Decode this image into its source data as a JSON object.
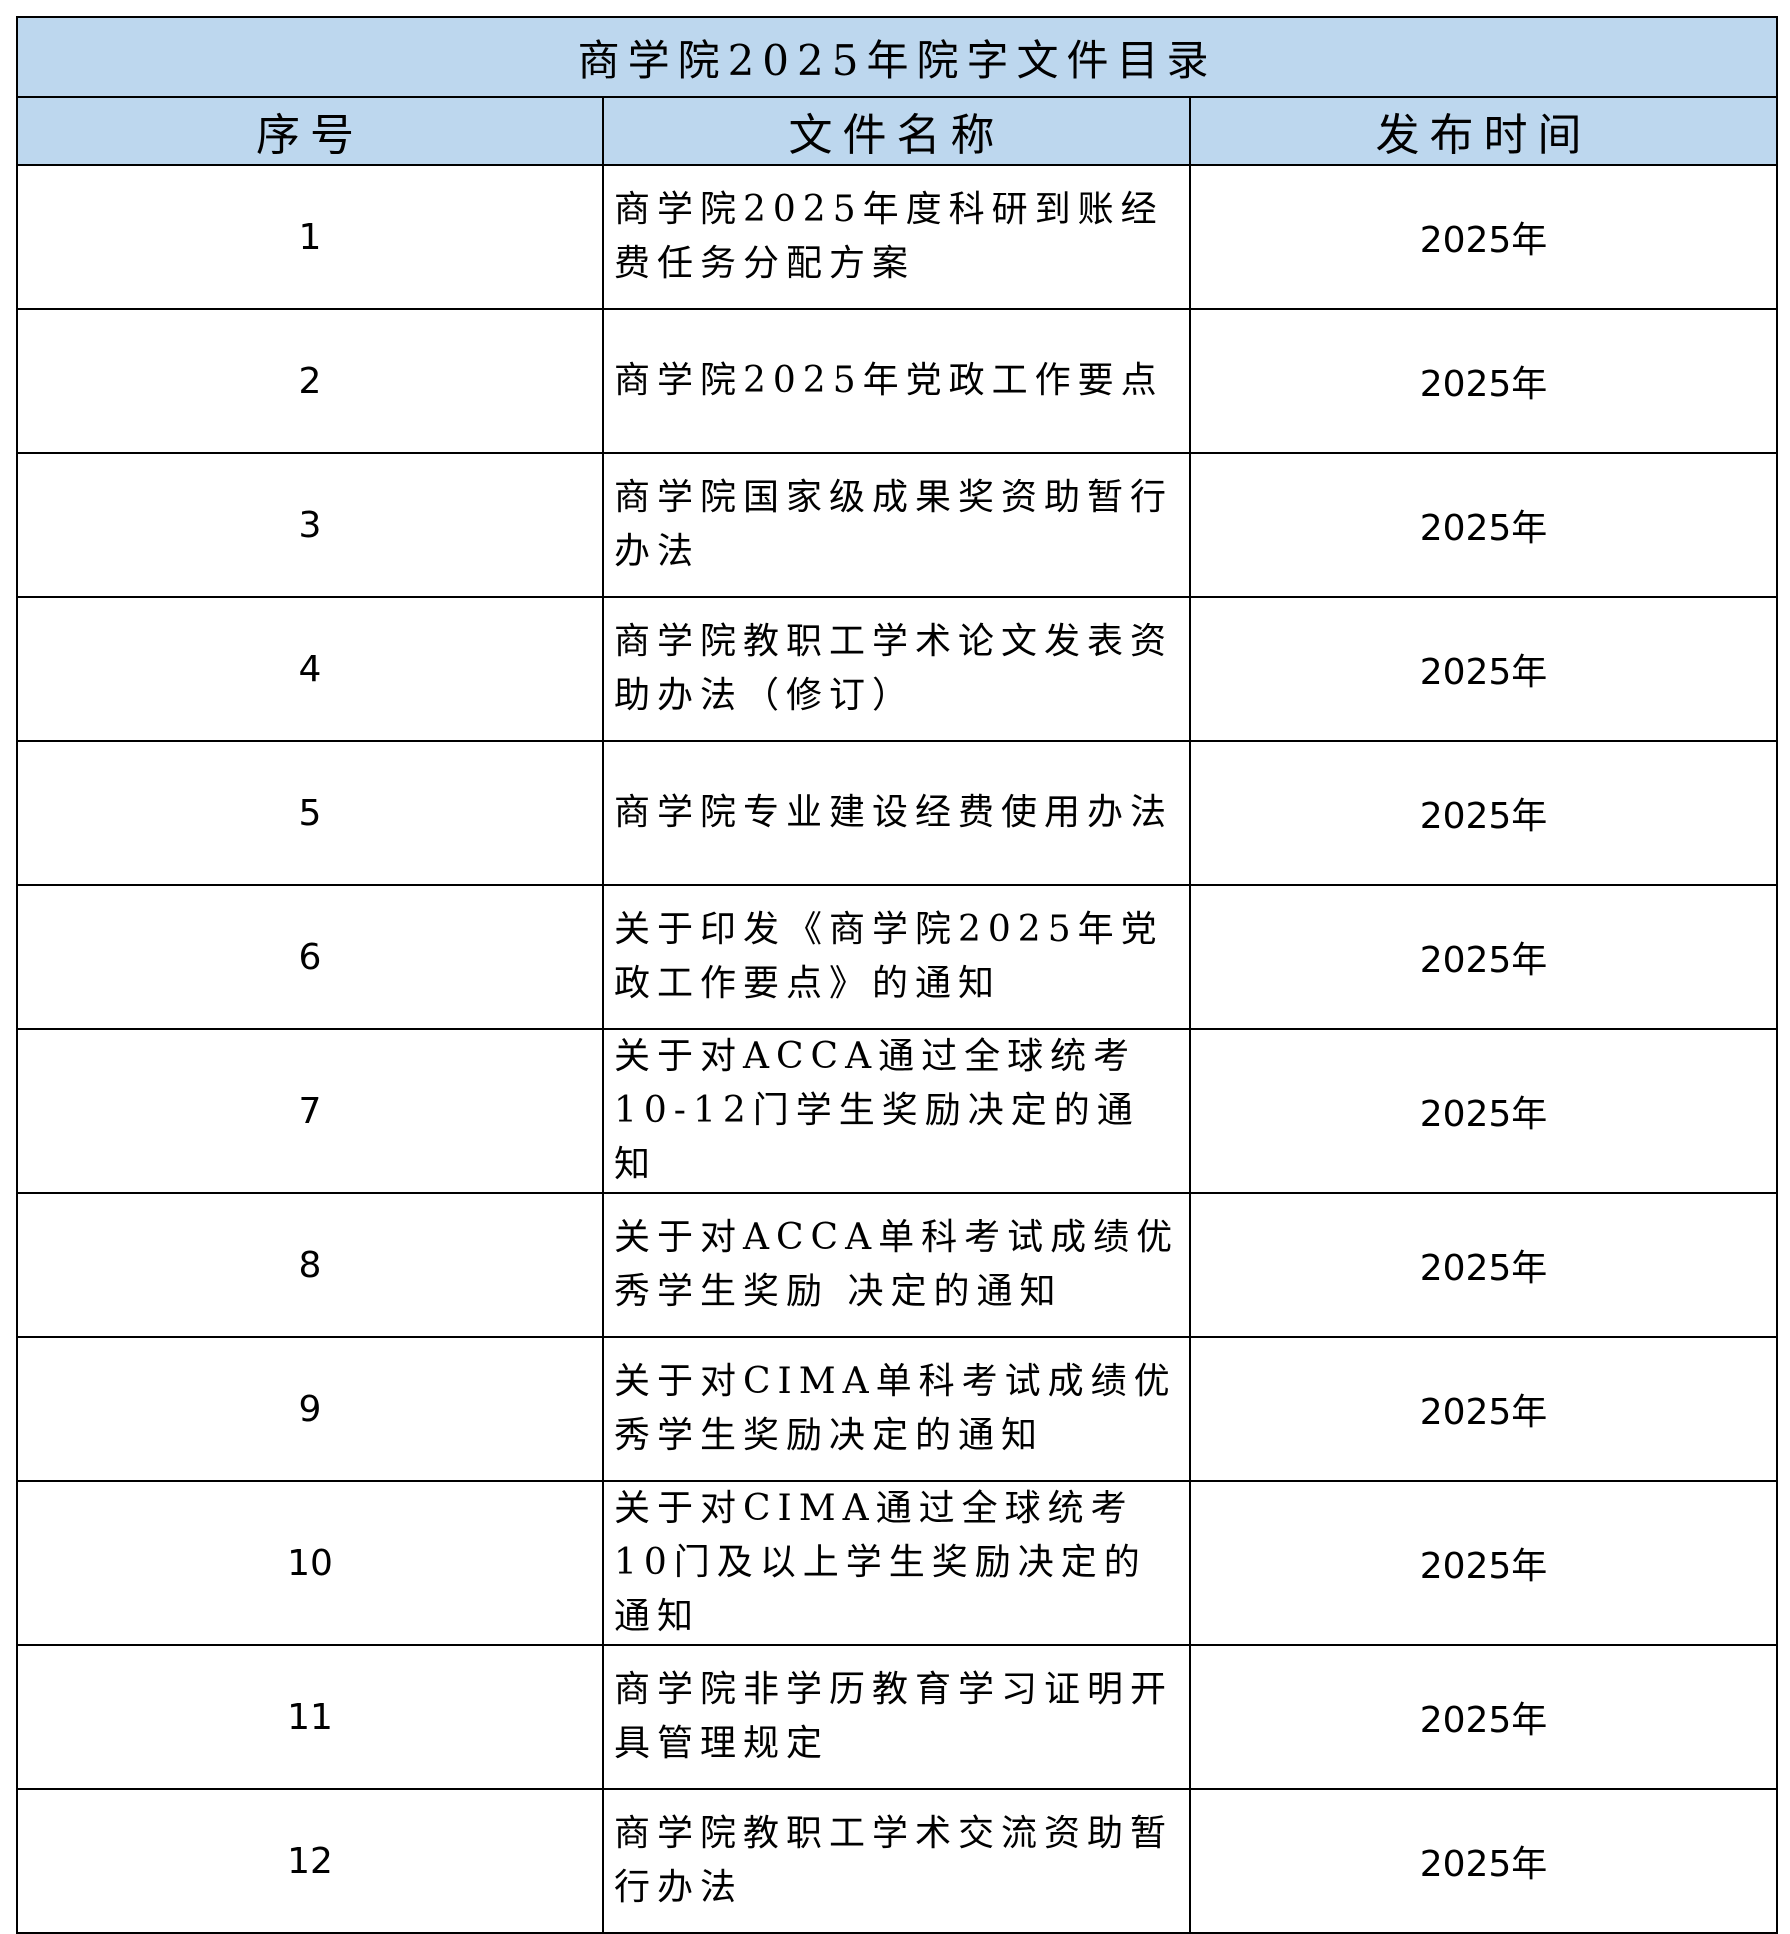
{
  "title": "商学院2025年院字文件目录",
  "headers": [
    "序号",
    "文件名称",
    "发布时间"
  ],
  "rows": [
    {
      "no": "1",
      "name": "商学院2025年度科研到账经费任务分配方案",
      "date": "2025年"
    },
    {
      "no": "2",
      "name": "商学院2025年党政工作要点",
      "date": "2025年"
    },
    {
      "no": "3",
      "name": "商学院国家级成果奖资助暂行办法",
      "date": "2025年"
    },
    {
      "no": "4",
      "name": "商学院教职工学术论文发表资助办法（修订）",
      "date": "2025年"
    },
    {
      "no": "5",
      "name": "商学院专业建设经费使用办法",
      "date": "2025年"
    },
    {
      "no": "6",
      "name": "关于印发《商学院2025年党政工作要点》的通知",
      "date": "2025年"
    },
    {
      "no": "7",
      "name": "关于对ACCA通过全球统考10-12门学生奖励决定的通知",
      "date": "2025年"
    },
    {
      "no": "8",
      "name": "关于对ACCA单科考试成绩优秀学生奖励 决定的通知",
      "date": "2025年"
    },
    {
      "no": "9",
      "name": "关于对CIMA单科考试成绩优秀学生奖励决定的通知",
      "date": "2025年"
    },
    {
      "no": "10",
      "name": "关于对CIMA通过全球统考10门及以上学生奖励决定的通知",
      "date": "2025年"
    },
    {
      "no": "11",
      "name": "商学院非学历教育学习证明开具管理规定",
      "date": "2025年"
    },
    {
      "no": "12",
      "name": "商学院教职工学术交流资助暂行办法",
      "date": "2025年"
    }
  ],
  "colors": {
    "header_bg": "#BDD7EE",
    "border": "#000000"
  }
}
